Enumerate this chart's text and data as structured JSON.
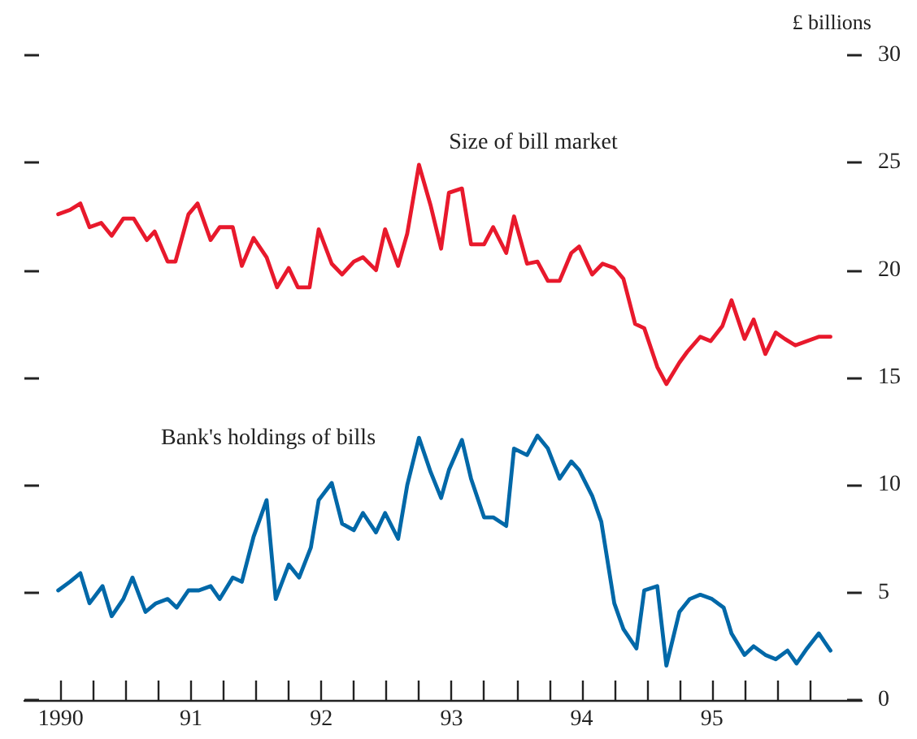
{
  "chart_data": {
    "type": "line",
    "ylabel": "£ billions",
    "xlim": [
      1989.72,
      1996.15
    ],
    "xticks": [
      1990,
      {
        "value": 1990.25,
        "label": null
      },
      {
        "value": 1990.5,
        "label": null
      },
      {
        "value": 1990.75,
        "label": null
      },
      {
        "value": 1991,
        "label": "91"
      },
      {
        "value": 1991.25,
        "label": null
      },
      {
        "value": 1991.5,
        "label": null
      },
      {
        "value": 1991.75,
        "label": null
      },
      {
        "value": 1992,
        "label": "92"
      },
      {
        "value": 1992.25,
        "label": null
      },
      {
        "value": 1992.5,
        "label": null
      },
      {
        "value": 1992.75,
        "label": null
      },
      {
        "value": 1993,
        "label": "93"
      },
      {
        "value": 1993.25,
        "label": null
      },
      {
        "value": 1993.5,
        "label": null
      },
      {
        "value": 1993.75,
        "label": null
      },
      {
        "value": 1994,
        "label": "94"
      },
      {
        "value": 1994.25,
        "label": null
      },
      {
        "value": 1994.5,
        "label": null
      },
      {
        "value": 1994.75,
        "label": null
      },
      {
        "value": 1995,
        "label": "95"
      },
      {
        "value": 1995.25,
        "label": null
      },
      {
        "value": 1995.5,
        "label": null
      },
      {
        "value": 1995.75,
        "label": null
      }
    ],
    "ylim": [
      0,
      30
    ],
    "yticks": [
      0,
      5,
      10,
      15,
      20,
      25,
      30
    ],
    "grid": false,
    "legend": false,
    "marker": "none",
    "line_style": "solid",
    "series": [
      {
        "name": "Size of bill market",
        "color": "#e8192c",
        "x": [
          1989.98,
          1990.07,
          1990.15,
          1990.22,
          1990.31,
          1990.39,
          1990.48,
          1990.56,
          1990.66,
          1990.72,
          1990.82,
          1990.88,
          1990.98,
          1991.05,
          1991.15,
          1991.22,
          1991.32,
          1991.39,
          1991.48,
          1991.58,
          1991.66,
          1991.75,
          1991.82,
          1991.91,
          1991.98,
          1992.08,
          1992.16,
          1992.25,
          1992.32,
          1992.42,
          1992.49,
          1992.59,
          1992.66,
          1992.75,
          1992.84,
          1992.92,
          1992.98,
          1993.08,
          1993.15,
          1993.25,
          1993.32,
          1993.42,
          1993.48,
          1993.58,
          1993.66,
          1993.74,
          1993.83,
          1993.92,
          1993.98,
          1994.08,
          1994.16,
          1994.25,
          1994.32,
          1994.41,
          1994.48,
          1994.58,
          1994.65,
          1994.75,
          1994.81,
          1994.91,
          1994.99,
          1995.08,
          1995.15,
          1995.25,
          1995.32,
          1995.41,
          1995.49,
          1995.56,
          1995.64,
          1995.73,
          1995.82,
          1995.91
        ],
        "values": [
          22.6,
          22.8,
          23.1,
          22.0,
          22.2,
          21.6,
          22.4,
          22.4,
          21.4,
          21.8,
          20.4,
          20.4,
          22.6,
          23.1,
          21.4,
          22.0,
          22.0,
          20.2,
          21.5,
          20.6,
          19.2,
          20.1,
          19.2,
          19.2,
          21.9,
          20.3,
          19.8,
          20.4,
          20.6,
          20.0,
          21.9,
          20.2,
          21.7,
          24.9,
          23.0,
          21.0,
          23.6,
          23.8,
          21.2,
          21.2,
          22.0,
          20.8,
          22.5,
          20.3,
          20.4,
          19.5,
          19.5,
          20.8,
          21.1,
          19.8,
          20.3,
          20.1,
          19.6,
          17.5,
          17.3,
          15.5,
          14.7,
          15.7,
          16.2,
          16.9,
          16.7,
          17.4,
          18.6,
          16.8,
          17.7,
          16.1,
          17.1,
          16.8,
          16.5,
          16.7,
          16.9,
          16.9
        ]
      },
      {
        "name": "Bank's holdings of bills",
        "color": "#0068a8",
        "x": [
          1989.98,
          1990.07,
          1990.15,
          1990.22,
          1990.32,
          1990.39,
          1990.48,
          1990.55,
          1990.65,
          1990.73,
          1990.82,
          1990.89,
          1990.98,
          1991.06,
          1991.15,
          1991.22,
          1991.32,
          1991.39,
          1991.48,
          1991.58,
          1991.65,
          1991.75,
          1991.83,
          1991.92,
          1991.98,
          1992.08,
          1992.16,
          1992.25,
          1992.32,
          1992.42,
          1992.49,
          1992.59,
          1992.66,
          1992.75,
          1992.84,
          1992.92,
          1992.98,
          1993.08,
          1993.15,
          1993.25,
          1993.32,
          1993.42,
          1993.48,
          1993.58,
          1993.66,
          1993.74,
          1993.83,
          1993.92,
          1993.98,
          1994.08,
          1994.15,
          1994.25,
          1994.32,
          1994.42,
          1994.48,
          1994.58,
          1994.65,
          1994.75,
          1994.83,
          1994.91,
          1995.0,
          1995.09,
          1995.15,
          1995.25,
          1995.32,
          1995.41,
          1995.49,
          1995.58,
          1995.65,
          1995.73,
          1995.82,
          1995.91
        ],
        "values": [
          5.1,
          5.5,
          5.9,
          4.5,
          5.3,
          3.9,
          4.7,
          5.7,
          4.1,
          4.5,
          4.7,
          4.3,
          5.1,
          5.1,
          5.3,
          4.7,
          5.7,
          5.5,
          7.6,
          9.3,
          4.7,
          6.3,
          5.7,
          7.1,
          9.3,
          10.1,
          8.2,
          7.9,
          8.7,
          7.8,
          8.7,
          7.5,
          10.0,
          12.2,
          10.6,
          9.4,
          10.7,
          12.1,
          10.3,
          8.5,
          8.5,
          8.1,
          11.7,
          11.4,
          12.3,
          11.7,
          10.3,
          11.1,
          10.7,
          9.5,
          8.3,
          4.5,
          3.3,
          2.4,
          5.1,
          5.3,
          1.6,
          4.1,
          4.7,
          4.9,
          4.7,
          4.3,
          3.1,
          2.1,
          2.5,
          2.1,
          1.9,
          2.3,
          1.7,
          2.4,
          3.1,
          2.3
        ]
      }
    ]
  }
}
